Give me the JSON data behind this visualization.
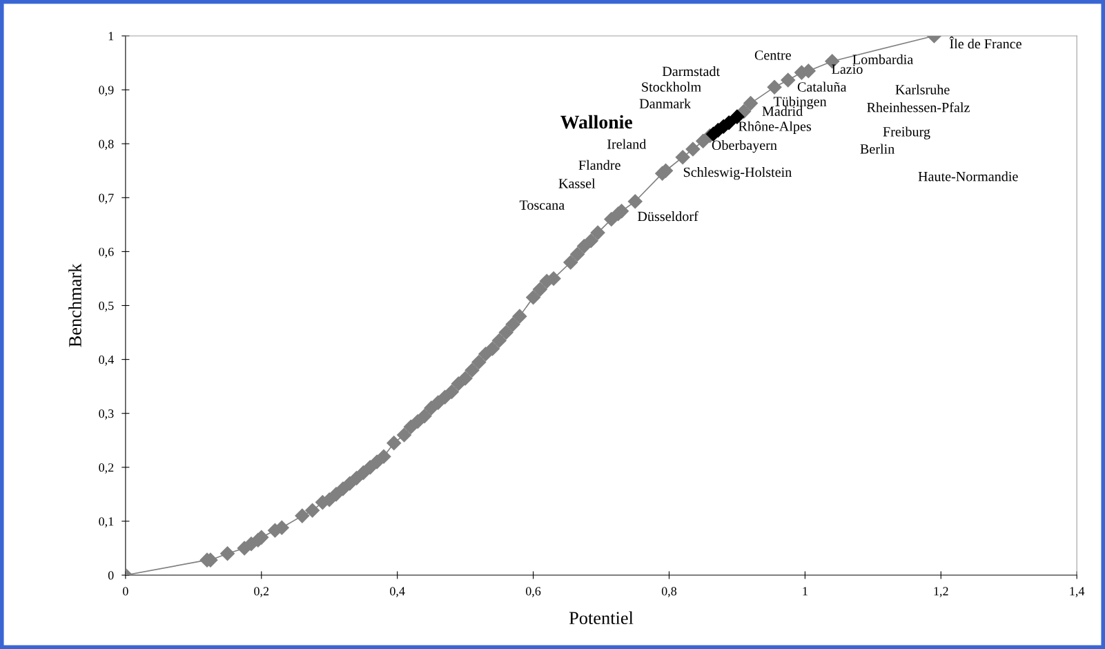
{
  "chart_data": {
    "type": "line",
    "xlabel": "Potentiel",
    "ylabel": "Benchmark",
    "marker": "diamond",
    "line_style": "solid",
    "grid": false,
    "legend": false,
    "xlim": [
      0,
      1.4
    ],
    "ylim": [
      0,
      1
    ],
    "xticks": [
      0,
      {
        "value": 0.2,
        "label": "0,2"
      },
      {
        "value": 0.4,
        "label": "0,4"
      },
      {
        "value": 0.6,
        "label": "0,6"
      },
      {
        "value": 0.8,
        "label": "0,8"
      },
      1,
      {
        "value": 1.2,
        "label": "1,2"
      },
      {
        "value": 1.4,
        "label": "1,4"
      }
    ],
    "yticks": [
      0,
      {
        "value": 0.1,
        "label": "0,1"
      },
      {
        "value": 0.2,
        "label": "0,2"
      },
      {
        "value": 0.3,
        "label": "0,3"
      },
      {
        "value": 0.4,
        "label": "0,4"
      },
      {
        "value": 0.5,
        "label": "0,5"
      },
      {
        "value": 0.6,
        "label": "0,6"
      },
      {
        "value": 0.7,
        "label": "0,7"
      },
      {
        "value": 0.8,
        "label": "0,8"
      },
      {
        "value": 0.9,
        "label": "0,9"
      },
      1
    ],
    "series": [
      {
        "color": "#808080",
        "x": [
          0,
          0.12,
          0.125,
          0.15,
          0.175,
          0.185,
          0.195,
          0.2,
          0.22,
          0.23,
          0.26,
          0.275,
          0.29,
          0.3,
          0.31,
          0.32,
          0.33,
          0.34,
          0.35,
          0.36,
          0.37,
          0.38,
          0.395,
          0.41,
          0.42,
          0.43,
          0.44,
          0.45,
          0.46,
          0.47,
          0.48,
          0.49,
          0.5,
          0.51,
          0.52,
          0.53,
          0.54,
          0.55,
          0.56,
          0.57,
          0.58,
          0.6,
          0.61,
          0.62,
          0.63,
          0.655,
          0.665,
          0.675,
          0.685,
          0.695,
          0.715,
          0.725,
          0.73,
          0.75,
          0.79,
          0.795,
          0.82,
          0.835,
          0.85,
          0.86,
          0.91,
          0.92,
          0.955,
          0.975,
          0.995,
          1.005,
          1.04,
          1.19
        ],
        "values": [
          0,
          0.028,
          0.028,
          0.04,
          0.05,
          0.058,
          0.065,
          0.07,
          0.083,
          0.088,
          0.11,
          0.12,
          0.135,
          0.14,
          0.15,
          0.16,
          0.17,
          0.18,
          0.19,
          0.2,
          0.21,
          0.22,
          0.245,
          0.26,
          0.275,
          0.285,
          0.295,
          0.31,
          0.32,
          0.33,
          0.34,
          0.355,
          0.365,
          0.38,
          0.395,
          0.41,
          0.42,
          0.435,
          0.45,
          0.465,
          0.48,
          0.515,
          0.53,
          0.545,
          0.55,
          0.58,
          0.595,
          0.61,
          0.62,
          0.635,
          0.66,
          0.67,
          0.675,
          0.693,
          0.745,
          0.75,
          0.775,
          0.79,
          0.805,
          0.815,
          0.86,
          0.875,
          0.905,
          0.918,
          0.932,
          0.935,
          0.953,
          1.0
        ]
      },
      {
        "type": "scatter",
        "color": "#000000",
        "x": [
          0.865,
          0.872,
          0.88,
          0.888,
          0.895,
          0.9
        ],
        "values": [
          0.818,
          0.825,
          0.832,
          0.839,
          null,
          0.85
        ]
      }
    ],
    "annotations": [
      "Île de France",
      "Lombardia",
      "Centre",
      "Lazio",
      "Darmstadt",
      "Stockholm",
      "Cataluña",
      "Karlsruhe",
      "Tübingen",
      "Danmark",
      "Rheinhessen-Pfalz",
      "Madrid",
      "Wallonie",
      "Rhône-Alpes",
      "Freiburg",
      "Ireland",
      "Oberbayern",
      "Berlin",
      "Flandre",
      "Schleswig-Holstein",
      "Haute-Normandie",
      "Kassel",
      "Toscana",
      "Düsseldorf"
    ]
  }
}
